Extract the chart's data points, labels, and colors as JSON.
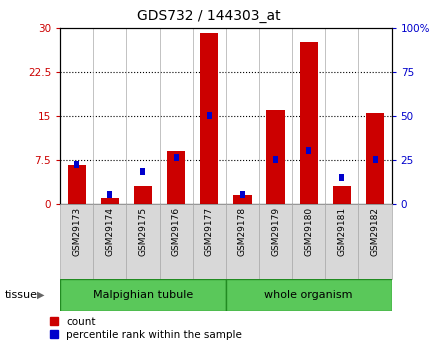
{
  "title": "GDS732 / 144303_at",
  "samples": [
    "GSM29173",
    "GSM29174",
    "GSM29175",
    "GSM29176",
    "GSM29177",
    "GSM29178",
    "GSM29179",
    "GSM29180",
    "GSM29181",
    "GSM29182"
  ],
  "count": [
    6.5,
    1.0,
    3.0,
    9.0,
    29.0,
    1.5,
    16.0,
    27.5,
    3.0,
    15.5
  ],
  "percentile": [
    22,
    5,
    18,
    26,
    50,
    5,
    25,
    30,
    15,
    25
  ],
  "ylim_left": [
    0,
    30
  ],
  "ylim_right": [
    0,
    100
  ],
  "yticks_left": [
    0,
    7.5,
    15,
    22.5,
    30
  ],
  "yticks_right": [
    0,
    25,
    50,
    75,
    100
  ],
  "ytick_labels_left": [
    "0",
    "7.5",
    "15",
    "22.5",
    "30"
  ],
  "ytick_labels_right": [
    "0",
    "25",
    "50",
    "75",
    "100%"
  ],
  "bar_color": "#cc0000",
  "percentile_color": "#0000cc",
  "tissue_groups": [
    {
      "label": "Malpighian tubule",
      "start": 0,
      "end": 4
    },
    {
      "label": "whole organism",
      "start": 5,
      "end": 9
    }
  ],
  "tissue_label": "tissue",
  "legend_count": "count",
  "legend_percentile": "percentile rank within the sample",
  "bar_width": 0.55,
  "perc_bar_width": 0.15,
  "tick_label_fontsize": 7.5,
  "title_fontsize": 10,
  "tissue_green_light": "#7ee87e",
  "tissue_green_dark": "#5ac85a",
  "xtick_bg": "#d8d8d8",
  "xtick_border": "#aaaaaa"
}
